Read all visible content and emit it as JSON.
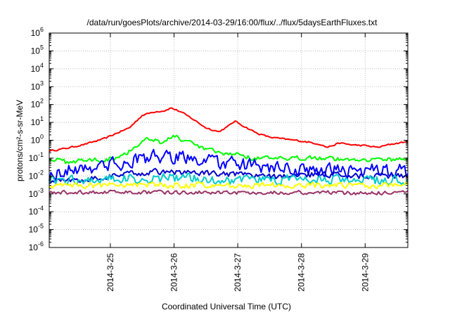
{
  "chart_data": {
    "type": "line",
    "title": "/data/run/goesPlots/archive/2014-03-29/16:00/flux/../flux/5daysEarthFluxes.txt",
    "xlabel": "Coordinated Universal Time (UTC)",
    "ylabel": "protons/cm²-s-sr-MeV",
    "y_scale": "log",
    "ylim": [
      1e-06,
      1000000.0
    ],
    "xlim": [
      24.04,
      29.67
    ],
    "x_ticks": [
      {
        "value": 25,
        "label": "2014-3-25"
      },
      {
        "value": 26,
        "label": "2014-3-26"
      },
      {
        "value": 27,
        "label": "2014-3-27"
      },
      {
        "value": 28,
        "label": "2014-3-28"
      },
      {
        "value": 29,
        "label": "2014-3-29"
      }
    ],
    "y_ticks": [
      {
        "exp": -6,
        "label_base": "10",
        "label_exp": "-6"
      },
      {
        "exp": -5,
        "label_base": "10",
        "label_exp": "-5"
      },
      {
        "exp": -4,
        "label_base": "10",
        "label_exp": "-4"
      },
      {
        "exp": -3,
        "label_base": "10",
        "label_exp": "-3"
      },
      {
        "exp": -2,
        "label_base": "10",
        "label_exp": "-2"
      },
      {
        "exp": -1,
        "label_base": "10",
        "label_exp": "-1"
      },
      {
        "exp": 0,
        "label_base": "10",
        "label_exp": "0"
      },
      {
        "exp": 1,
        "label_base": "10",
        "label_exp": "1"
      },
      {
        "exp": 2,
        "label_base": "10",
        "label_exp": "2"
      },
      {
        "exp": 3,
        "label_base": "10",
        "label_exp": "3"
      },
      {
        "exp": 4,
        "label_base": "10",
        "label_exp": "4"
      },
      {
        "exp": 5,
        "label_base": "10",
        "label_exp": "5"
      },
      {
        "exp": 6,
        "label_base": "10",
        "label_exp": "6"
      }
    ],
    "grid": true,
    "legend": "none",
    "series": [
      {
        "color": "#ff0000",
        "noise": 0.04,
        "points": [
          [
            24.04,
            0.25
          ],
          [
            24.3,
            0.35
          ],
          [
            24.6,
            0.6
          ],
          [
            24.9,
            1.2
          ],
          [
            25.1,
            2.5
          ],
          [
            25.3,
            5
          ],
          [
            25.5,
            25
          ],
          [
            25.7,
            40
          ],
          [
            25.85,
            45
          ],
          [
            25.95,
            65
          ],
          [
            26.1,
            40
          ],
          [
            26.3,
            15
          ],
          [
            26.5,
            5
          ],
          [
            26.7,
            3
          ],
          [
            26.85,
            6
          ],
          [
            26.95,
            12
          ],
          [
            27.1,
            6
          ],
          [
            27.3,
            2.5
          ],
          [
            27.5,
            1.5
          ],
          [
            27.7,
            1.2
          ],
          [
            27.9,
            1.0
          ],
          [
            28.1,
            0.8
          ],
          [
            28.3,
            0.6
          ],
          [
            28.4,
            0.4
          ],
          [
            28.6,
            0.7
          ],
          [
            28.8,
            0.55
          ],
          [
            29.0,
            0.5
          ],
          [
            29.2,
            0.4
          ],
          [
            29.4,
            0.6
          ],
          [
            29.67,
            0.85
          ]
        ]
      },
      {
        "color": "#00ff00",
        "noise": 0.12,
        "points": [
          [
            24.04,
            0.1
          ],
          [
            24.3,
            0.06
          ],
          [
            24.6,
            0.08
          ],
          [
            24.9,
            0.08
          ],
          [
            25.1,
            0.12
          ],
          [
            25.3,
            0.25
          ],
          [
            25.5,
            0.9
          ],
          [
            25.65,
            1.4
          ],
          [
            25.8,
            0.7
          ],
          [
            26.0,
            1.8
          ],
          [
            26.2,
            0.8
          ],
          [
            26.4,
            0.4
          ],
          [
            26.6,
            0.25
          ],
          [
            26.8,
            0.15
          ],
          [
            27.0,
            0.2
          ],
          [
            27.2,
            0.1
          ],
          [
            27.5,
            0.1
          ],
          [
            27.8,
            0.08
          ],
          [
            28.1,
            0.12
          ],
          [
            28.4,
            0.1
          ],
          [
            28.7,
            0.08
          ],
          [
            29.0,
            0.09
          ],
          [
            29.3,
            0.08
          ],
          [
            29.67,
            0.1
          ]
        ]
      },
      {
        "color": "#0000ff",
        "noise": 0.35,
        "points": [
          [
            24.04,
            0.01
          ],
          [
            24.3,
            0.02
          ],
          [
            24.6,
            0.03
          ],
          [
            24.9,
            0.04
          ],
          [
            25.2,
            0.05
          ],
          [
            25.5,
            0.1
          ],
          [
            25.7,
            0.12
          ],
          [
            25.9,
            0.1
          ],
          [
            26.1,
            0.12
          ],
          [
            26.3,
            0.1
          ],
          [
            26.5,
            0.07
          ],
          [
            26.8,
            0.05
          ],
          [
            27.1,
            0.04
          ],
          [
            27.4,
            0.03
          ],
          [
            27.7,
            0.025
          ],
          [
            28.0,
            0.02
          ],
          [
            28.4,
            0.02
          ],
          [
            28.8,
            0.02
          ],
          [
            29.2,
            0.02
          ],
          [
            29.67,
            0.02
          ]
        ]
      },
      {
        "color": "#0000cc",
        "noise": 0.15,
        "points": [
          [
            24.04,
            0.005
          ],
          [
            24.4,
            0.006
          ],
          [
            24.8,
            0.008
          ],
          [
            25.2,
            0.012
          ],
          [
            25.5,
            0.015
          ],
          [
            25.8,
            0.018
          ],
          [
            26.1,
            0.016
          ],
          [
            26.5,
            0.014
          ],
          [
            26.9,
            0.012
          ],
          [
            27.3,
            0.01
          ],
          [
            27.7,
            0.009
          ],
          [
            28.1,
            0.012
          ],
          [
            28.5,
            0.012
          ],
          [
            28.9,
            0.01
          ],
          [
            29.3,
            0.01
          ],
          [
            29.67,
            0.011
          ]
        ]
      },
      {
        "color": "#00cccc",
        "noise": 0.25,
        "points": [
          [
            24.04,
            0.006
          ],
          [
            24.5,
            0.006
          ],
          [
            25.0,
            0.007
          ],
          [
            25.5,
            0.007
          ],
          [
            26.0,
            0.008
          ],
          [
            26.5,
            0.007
          ],
          [
            27.0,
            0.006
          ],
          [
            27.5,
            0.006
          ],
          [
            28.0,
            0.006
          ],
          [
            28.5,
            0.006
          ],
          [
            29.0,
            0.006
          ],
          [
            29.67,
            0.006
          ]
        ]
      },
      {
        "color": "#ffff00",
        "noise": 0.15,
        "points": [
          [
            24.04,
            0.003
          ],
          [
            24.6,
            0.003
          ],
          [
            25.2,
            0.0032
          ],
          [
            25.8,
            0.003
          ],
          [
            26.4,
            0.003
          ],
          [
            27.0,
            0.0028
          ],
          [
            27.6,
            0.003
          ],
          [
            28.2,
            0.003
          ],
          [
            28.8,
            0.003
          ],
          [
            29.67,
            0.003
          ]
        ]
      },
      {
        "color": "#993366",
        "noise": 0.1,
        "points": [
          [
            24.04,
            0.0012
          ],
          [
            24.6,
            0.0012
          ],
          [
            25.2,
            0.0013
          ],
          [
            25.8,
            0.0012
          ],
          [
            26.4,
            0.0012
          ],
          [
            27.0,
            0.0012
          ],
          [
            27.6,
            0.0012
          ],
          [
            28.2,
            0.0012
          ],
          [
            28.8,
            0.0011
          ],
          [
            29.67,
            0.0012
          ]
        ]
      }
    ]
  }
}
